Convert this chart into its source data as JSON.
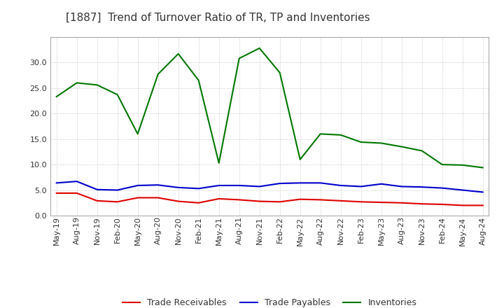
{
  "title": "[1887]  Trend of Turnover Ratio of TR, TP and Inventories",
  "x_labels": [
    "May-19",
    "Aug-19",
    "Nov-19",
    "Feb-20",
    "May-20",
    "Aug-20",
    "Nov-20",
    "Feb-21",
    "May-21",
    "Aug-21",
    "Nov-21",
    "Feb-22",
    "May-22",
    "Aug-22",
    "Nov-22",
    "Feb-23",
    "May-23",
    "Aug-23",
    "Nov-23",
    "Feb-24",
    "May-24",
    "Aug-24"
  ],
  "trade_receivables": [
    4.4,
    4.4,
    2.9,
    2.7,
    3.5,
    3.5,
    2.8,
    2.5,
    3.3,
    3.1,
    2.8,
    2.7,
    3.2,
    3.1,
    2.9,
    2.7,
    2.6,
    2.5,
    2.3,
    2.2,
    2.0,
    2.0
  ],
  "trade_payables": [
    6.4,
    6.7,
    5.1,
    5.0,
    5.9,
    6.0,
    5.5,
    5.3,
    5.9,
    5.9,
    5.7,
    6.3,
    6.4,
    6.4,
    5.9,
    5.7,
    6.2,
    5.7,
    5.6,
    5.4,
    5.0,
    4.6
  ],
  "inventories": [
    23.3,
    26.0,
    25.6,
    23.7,
    16.0,
    27.7,
    31.7,
    26.5,
    10.3,
    30.8,
    32.8,
    28.0,
    11.0,
    16.0,
    15.8,
    14.4,
    14.2,
    13.5,
    12.7,
    10.0,
    9.9,
    9.4
  ],
  "color_tr": "#dd0000",
  "color_tp": "#0000cc",
  "color_inv": "#007700",
  "ylim": [
    0,
    35
  ],
  "yticks": [
    0.0,
    5.0,
    10.0,
    15.0,
    20.0,
    25.0,
    30.0
  ],
  "background_color": "#ffffff",
  "grid_color": "#aaaaaa",
  "legend_labels": [
    "Trade Receivables",
    "Trade Payables",
    "Inventories"
  ],
  "title_fontsize": 11,
  "tick_fontsize": 8,
  "legend_fontsize": 9
}
